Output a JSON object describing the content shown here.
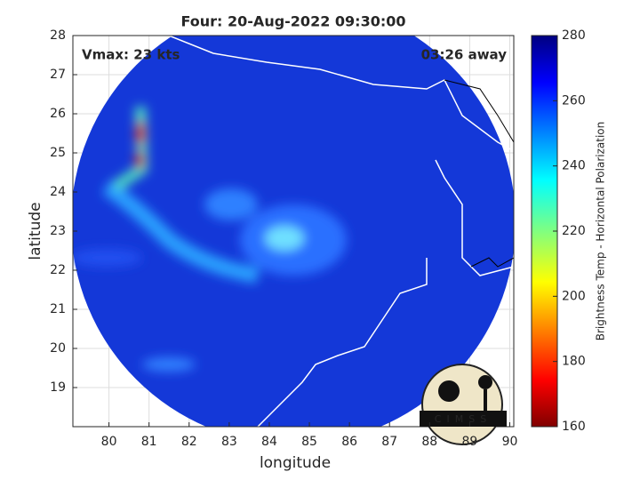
{
  "title": "Four: 20-Aug-2022 09:30:00",
  "annotations": {
    "vmax": "Vmax: 23 kts",
    "time_away": "03:26 away"
  },
  "map": {
    "xlabel": "longitude",
    "ylabel": "latitude",
    "xlim": [
      79.1,
      90.1
    ],
    "ylim": [
      18,
      28
    ],
    "xticks": [
      80,
      81,
      82,
      83,
      84,
      85,
      86,
      87,
      88,
      89,
      90
    ],
    "yticks": [
      19,
      20,
      21,
      22,
      23,
      24,
      25,
      26,
      27,
      28
    ]
  },
  "colorbar": {
    "label": "Brightness Temp - Horizontal Polarization",
    "lim": [
      160,
      280
    ],
    "ticks": [
      160,
      180,
      200,
      220,
      240,
      260,
      280
    ]
  },
  "logo": "CIMSS"
}
